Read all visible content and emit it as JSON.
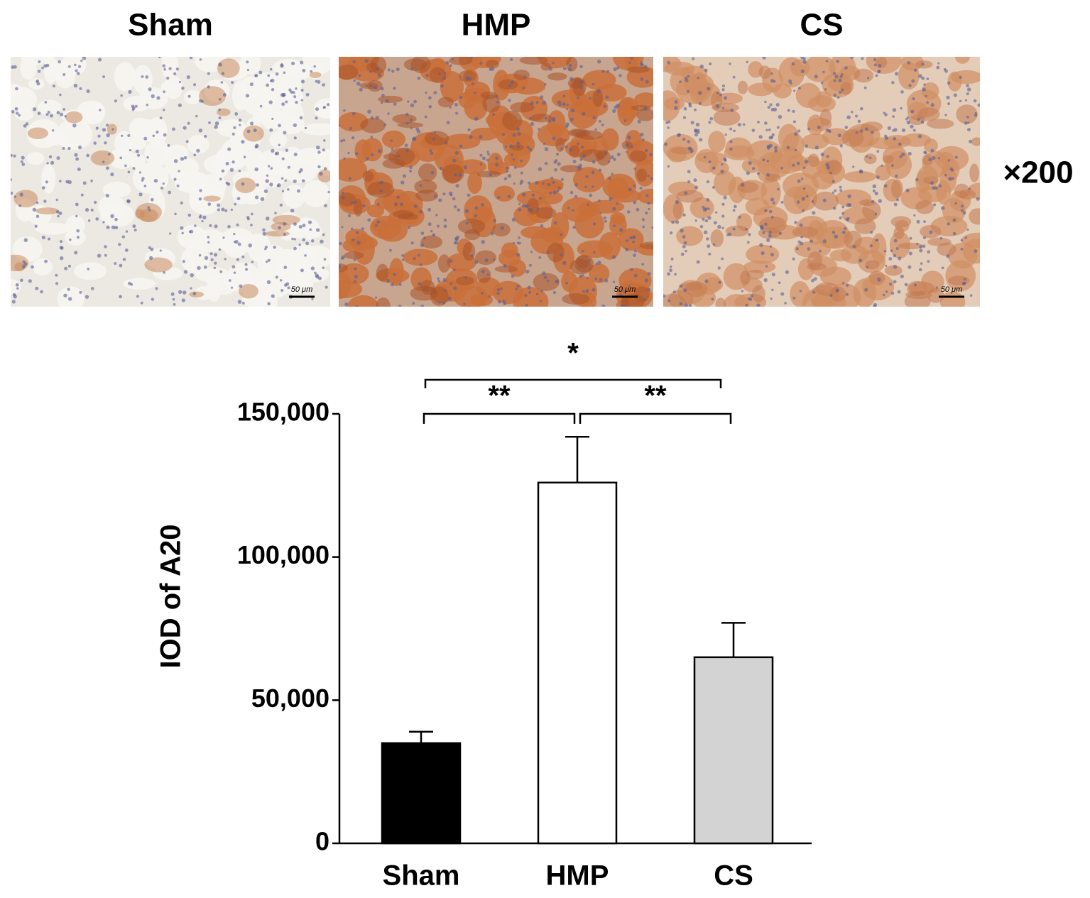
{
  "panels": [
    {
      "label": "Sham",
      "scale_bar": "50 μm"
    },
    {
      "label": "HMP",
      "scale_bar": "50 μm"
    },
    {
      "label": "CS",
      "scale_bar": "50 μm"
    }
  ],
  "magnification": "×200",
  "chart_data": {
    "type": "bar",
    "y_label": "IOD of A20",
    "categories": [
      "Sham",
      "HMP",
      "CS"
    ],
    "values": [
      35000,
      126000,
      65000
    ],
    "errors": [
      4000,
      16000,
      12000
    ],
    "colors": [
      "#000000",
      "#ffffff",
      "#d3d3d3"
    ],
    "ylim": [
      0,
      150000
    ],
    "yticks": [
      0,
      {
        "value": 50000,
        "label": "50,000"
      },
      {
        "value": 100000,
        "label": "100,000"
      },
      {
        "value": 150000,
        "label": "150,000"
      }
    ],
    "comparisons": [
      {
        "from": "Sham",
        "to": "HMP",
        "label": "**"
      },
      {
        "from": "HMP",
        "to": "CS",
        "label": "**"
      },
      {
        "from": "Sham",
        "to": "CS",
        "label": "*"
      }
    ]
  }
}
